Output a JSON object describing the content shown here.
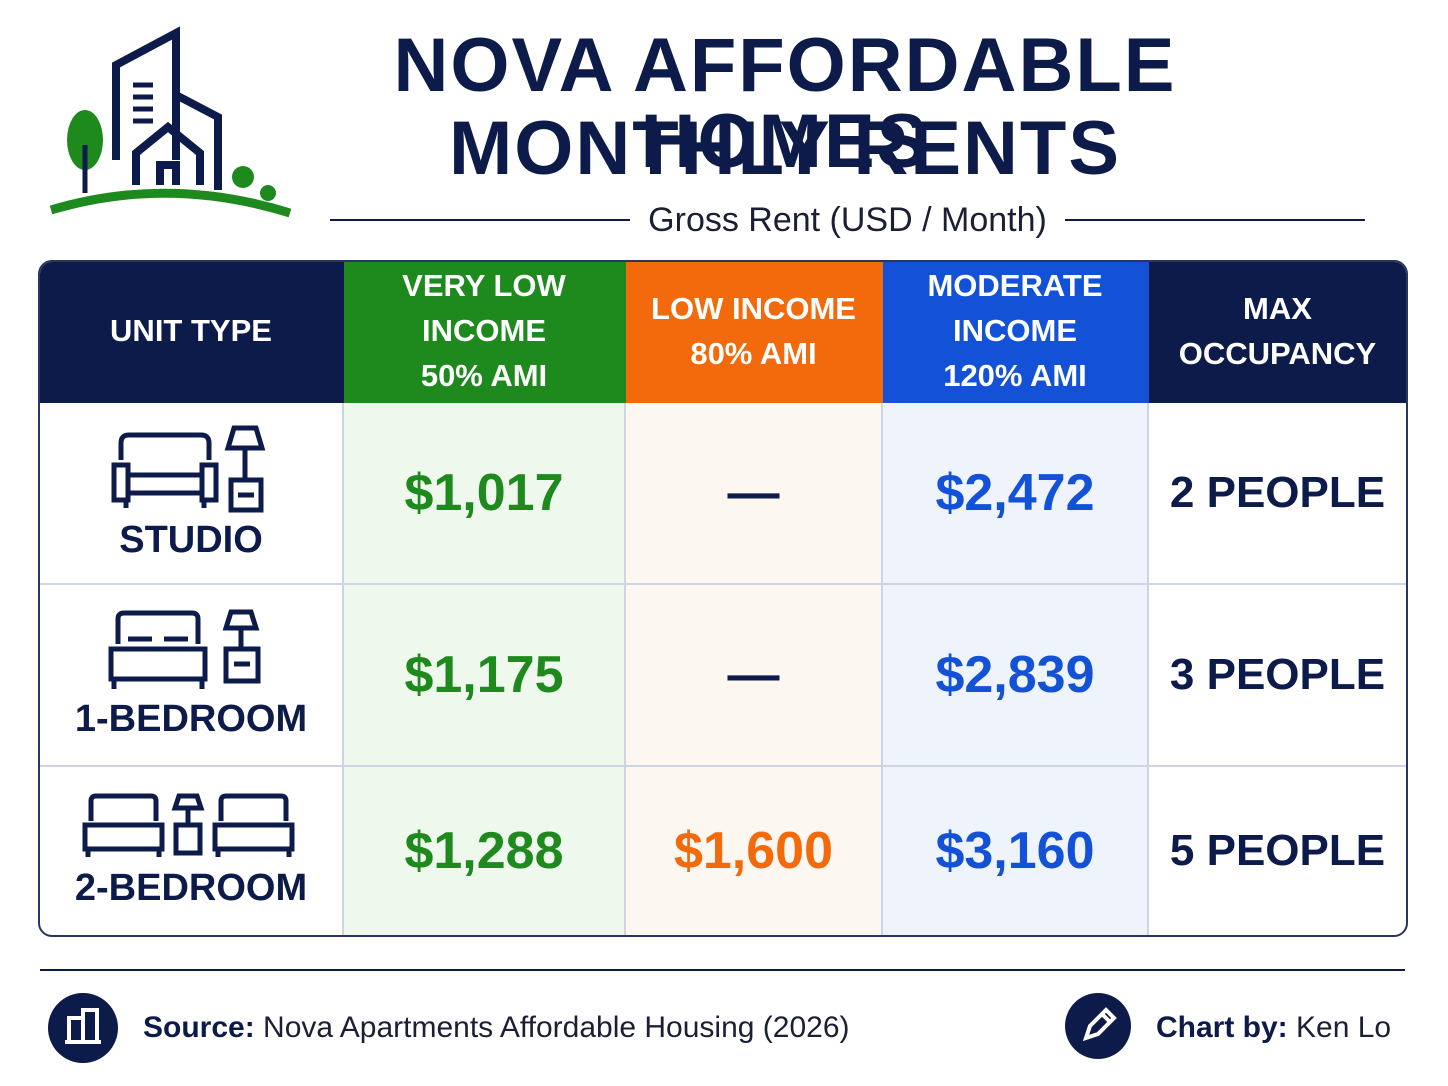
{
  "header": {
    "title_line1": "NOVA AFFORDABLE HOMES",
    "title_line2": "MONTHLY RENTS",
    "subtitle": "Gross Rent (USD / Month)"
  },
  "table": {
    "columns": [
      {
        "label": "UNIT TYPE"
      },
      {
        "label": "VERY LOW INCOME",
        "sublabel": "50% AMI"
      },
      {
        "label": "LOW INCOME",
        "sublabel": "80% AMI"
      },
      {
        "label": "MODERATE INCOME",
        "sublabel": "120% AMI"
      },
      {
        "label": "MAX OCCUPANCY"
      }
    ],
    "rows": [
      [
        "STUDIO",
        "$1,017",
        "—",
        "$2,472",
        "2 PEOPLE"
      ],
      [
        "1-BEDROOM",
        "$1,175",
        "—",
        "$2,839",
        "3 PEOPLE"
      ],
      [
        "2-BEDROOM",
        "$1,288",
        "$1,600",
        "$3,160",
        "5 PEOPLE"
      ]
    ]
  },
  "footer": {
    "source_label": "Source:",
    "source_text": "Nova Apartments Affordable Housing (2026)",
    "credit_label": "Chart by:",
    "credit_name": "Ken Lo"
  }
}
